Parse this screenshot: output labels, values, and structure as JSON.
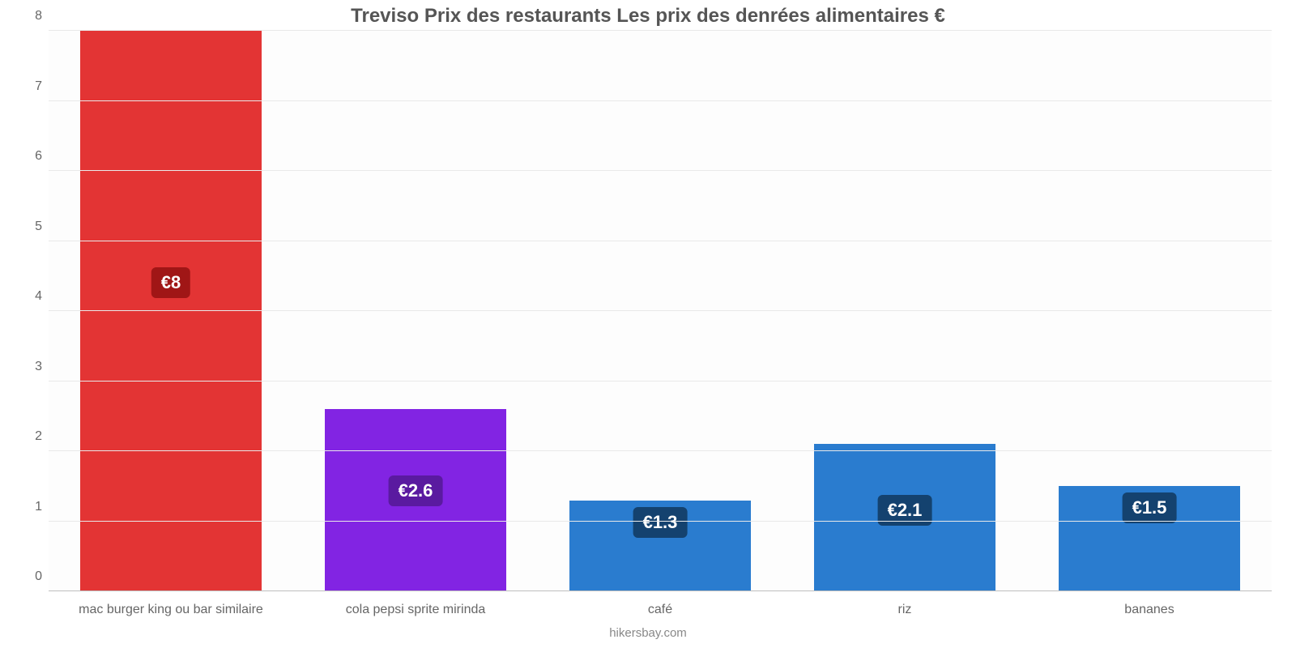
{
  "chart": {
    "type": "bar",
    "title": "Treviso Prix des restaurants Les prix des denrées alimentaires €",
    "title_fontsize": 24,
    "title_color": "#555555",
    "background_color": "#ffffff",
    "plot_background": "#fdfdfd",
    "axis_color": "#666666",
    "axis_fontsize": 16,
    "x_label_fontsize": 16,
    "grid_color": "#e9e9e9",
    "baseline_color": "#bfbfbf",
    "ylim": [
      0,
      8
    ],
    "ytick_step": 1,
    "yticks": [
      0,
      1,
      2,
      3,
      4,
      5,
      6,
      7,
      8
    ],
    "bar_width_pct": 74,
    "value_label_fontsize": 22,
    "value_label_color": "#ffffff",
    "categories": [
      "mac burger king ou bar similaire",
      "cola pepsi sprite mirinda",
      "café",
      "riz",
      "bananes"
    ],
    "values": [
      8,
      2.6,
      1.3,
      2.1,
      1.5
    ],
    "value_labels": [
      "€8",
      "€2.6",
      "€1.3",
      "€2.1",
      "€1.5"
    ],
    "bar_colors": [
      "#e33434",
      "#8224e3",
      "#2a7ccf",
      "#2a7ccf",
      "#2a7ccf"
    ],
    "badge_colors": [
      "#a01616",
      "#5a1aa0",
      "#14426f",
      "#14426f",
      "#14426f"
    ],
    "credit": "hikersbay.com",
    "credit_fontsize": 15,
    "credit_color": "#888888"
  }
}
